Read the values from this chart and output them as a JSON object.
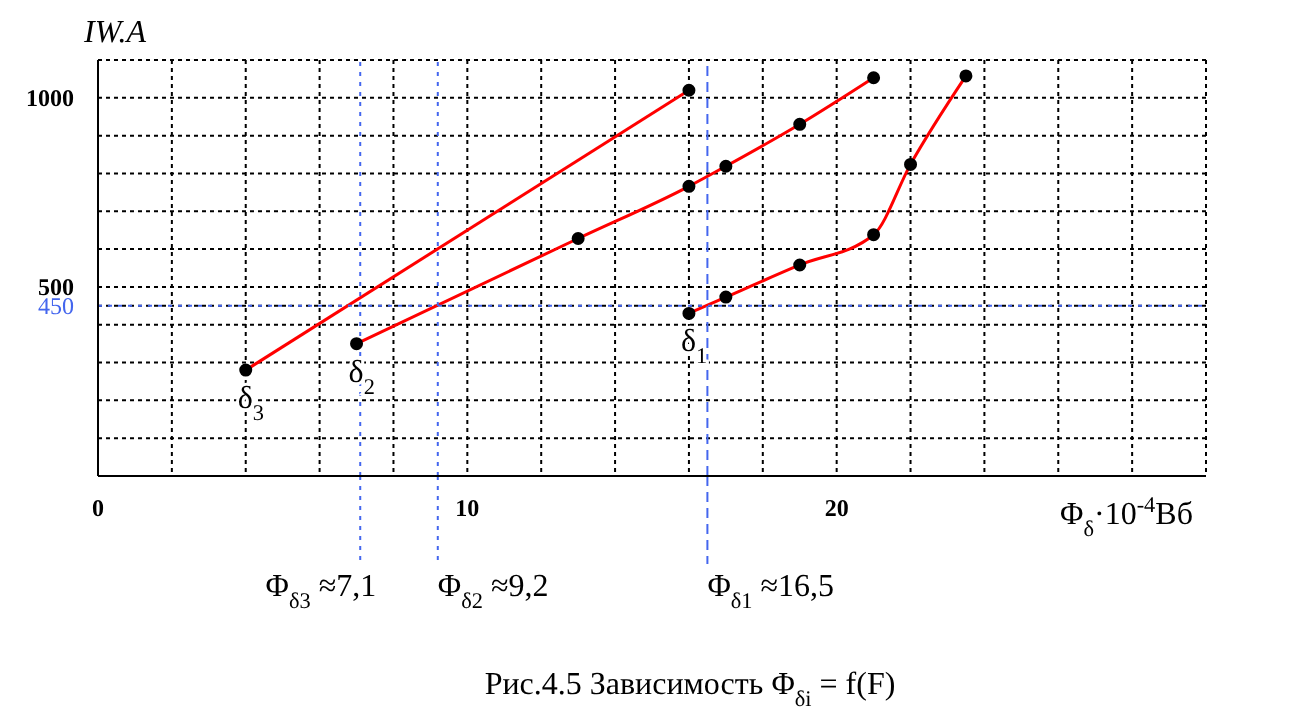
{
  "chart_data": {
    "type": "line",
    "title": "Рис.4.5 Зависимость Φ$_{δi}$ = f(F)",
    "xlabel": "Φ$_{δ}$·10$^{-4}$Вб",
    "ylabel": "IW.A",
    "xlim": [
      0,
      30
    ],
    "ylim": [
      0,
      1100
    ],
    "xticks": [
      0,
      {
        "value": 2,
        "label": null
      },
      {
        "value": 4,
        "label": null
      },
      {
        "value": 6,
        "label": null
      },
      {
        "value": 8,
        "label": null
      },
      10,
      {
        "value": 12,
        "label": null
      },
      {
        "value": 14,
        "label": null
      },
      {
        "value": 16,
        "label": null
      },
      {
        "value": 18,
        "label": null
      },
      20,
      {
        "value": 22,
        "label": null
      },
      {
        "value": 24,
        "label": null
      },
      {
        "value": 26,
        "label": null
      },
      {
        "value": 28,
        "label": null
      },
      {
        "value": 30,
        "label": null
      }
    ],
    "yticks": [
      {
        "value": 100,
        "label": null
      },
      {
        "value": 200,
        "label": null
      },
      {
        "value": 300,
        "label": null
      },
      {
        "value": 400,
        "label": null
      },
      {
        "value": 450,
        "label": "450"
      },
      500,
      {
        "value": 600,
        "label": null
      },
      {
        "value": 700,
        "label": null
      },
      {
        "value": 800,
        "label": null
      },
      {
        "value": 900,
        "label": null
      },
      1000,
      {
        "value": 1100,
        "label": null
      }
    ],
    "grid": true,
    "legend": false,
    "marker": "circle",
    "line_style": "solid",
    "series": [
      {
        "name": "δ$_{3}$",
        "color": "#ff0000",
        "x": [
          4,
          16
        ],
        "values": [
          280,
          1020
        ]
      },
      {
        "name": "δ$_{2}$",
        "color": "#ff0000",
        "x": [
          7,
          13,
          16,
          17,
          19,
          21
        ],
        "values": [
          350,
          628,
          766,
          819,
          930,
          1053
        ]
      },
      {
        "name": "δ$_{1}$",
        "color": "#ff0000",
        "x": [
          16,
          17,
          19,
          21,
          22,
          23.5
        ],
        "values": [
          430,
          473,
          558,
          638,
          824,
          1058
        ]
      }
    ],
    "ref_lines": [
      {
        "axis": "y",
        "value": 450,
        "color": "#4466ee",
        "line_style": "dotted"
      },
      {
        "axis": "x",
        "value": 7.1,
        "label": "Φ$_{δ3}$ ≈7,1",
        "color": "#4466ee",
        "line_style": "dotted"
      },
      {
        "axis": "x",
        "value": 9.2,
        "label": "Φ$_{δ2}$ ≈9,2",
        "color": "#4466ee",
        "line_style": "dotted"
      },
      {
        "axis": "x",
        "value": 16.5,
        "label": "Φ$_{δ1}$ ≈16,5",
        "color": "#4466ee",
        "line_style": "dashed"
      }
    ]
  }
}
